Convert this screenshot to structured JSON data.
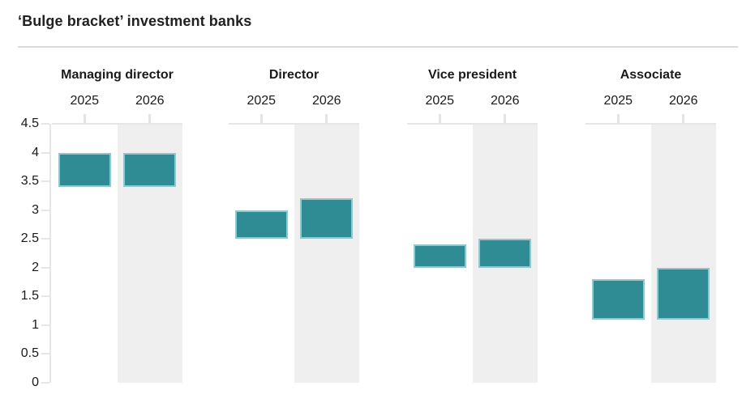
{
  "chart_data": {
    "type": "bar",
    "subtype": "floating-range-columns",
    "title": "‘Bulge bracket’ investment banks",
    "columns": [
      "2025",
      "2026"
    ],
    "series": [
      {
        "name": "Managing director",
        "ranges": {
          "2025": [
            3.4,
            4.0
          ],
          "2026": [
            3.4,
            4.0
          ]
        }
      },
      {
        "name": "Director",
        "ranges": {
          "2025": [
            2.5,
            3.0
          ],
          "2026": [
            2.5,
            3.2
          ]
        }
      },
      {
        "name": "Vice president",
        "ranges": {
          "2025": [
            2.0,
            2.4
          ],
          "2026": [
            2.0,
            2.5
          ]
        }
      },
      {
        "name": "Associate",
        "ranges": {
          "2025": [
            1.1,
            1.8
          ],
          "2026": [
            1.1,
            2.0
          ]
        }
      }
    ],
    "ylim": [
      0,
      4.5
    ],
    "ytick_step": 0.5,
    "y_tick_labels": [
      "4.5",
      "4",
      "3.5",
      "3",
      "2.5",
      "2",
      "1.5",
      "1",
      "0.5",
      "0"
    ],
    "xlabel": "",
    "ylabel": "",
    "grid": "off",
    "legend": "none",
    "highlighted_column": "2026"
  },
  "colors": {
    "bar_fill": "#2f8b94",
    "bar_border": "rgba(255,255,255,0.5)",
    "column_highlight_bg": "#efefef",
    "axis_line": "#e6e6e6",
    "divider": "#dbdbdb",
    "title_text": "#212121",
    "label_text": "#1a1a1a"
  }
}
